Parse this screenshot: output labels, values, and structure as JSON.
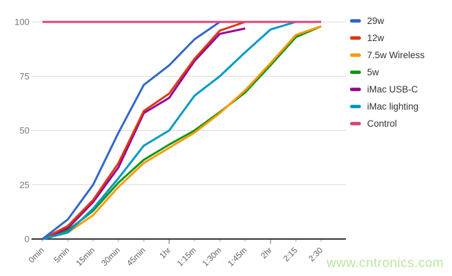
{
  "watermark": "www.cntronics.com",
  "chart_data": {
    "type": "line",
    "title": "",
    "xlabel": "",
    "ylabel": "",
    "categories": [
      "0min",
      "5min",
      "15min",
      "30min",
      "45min",
      "1hr",
      "1:15m",
      "1:30m",
      "1:45m",
      "2hr",
      "2:15",
      "2:30"
    ],
    "yticks": [
      0,
      25,
      50,
      75,
      100
    ],
    "ylim": [
      0,
      100
    ],
    "grid": true,
    "legend_position": "right",
    "major_tick_indices": [
      5,
      9
    ],
    "series": [
      {
        "name": "29w",
        "color": "#3366cc",
        "values": [
          0,
          9,
          25,
          49,
          71,
          80,
          92,
          100
        ]
      },
      {
        "name": "12w",
        "color": "#dc3912",
        "values": [
          0,
          6,
          18,
          35,
          59,
          67,
          83,
          96,
          100
        ]
      },
      {
        "name": "7.5w Wireless",
        "color": "#ff9900",
        "values": [
          0,
          3,
          11,
          24,
          35,
          42,
          49,
          58,
          68.5,
          81,
          94,
          98
        ]
      },
      {
        "name": "5w",
        "color": "#109618",
        "values": [
          0,
          4,
          13,
          26,
          36.5,
          43.5,
          50,
          58.5,
          67.5,
          80,
          93,
          98
        ]
      },
      {
        "name": "iMac USB-C",
        "color": "#990099",
        "values": [
          0,
          5,
          17,
          33,
          58,
          65,
          82,
          94.5,
          97
        ]
      },
      {
        "name": "iMac lighting",
        "color": "#0099c6",
        "values": [
          0,
          3,
          14,
          28,
          43,
          50,
          66,
          75,
          86,
          96.5,
          100
        ]
      },
      {
        "name": "Control",
        "color": "#dd4477",
        "values": [
          100,
          100,
          100,
          100,
          100,
          100,
          100,
          100,
          100,
          100,
          100,
          100
        ]
      }
    ]
  }
}
